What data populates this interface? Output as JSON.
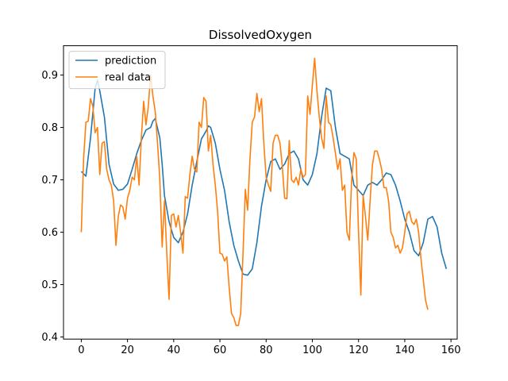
{
  "chart_data": {
    "type": "line",
    "title": "DissolvedOxygen",
    "xlabel": "",
    "ylabel": "",
    "xlim": [
      -7.7,
      162.7
    ],
    "ylim": [
      0.396,
      0.956
    ],
    "xticks": [
      0,
      20,
      40,
      60,
      80,
      100,
      120,
      140,
      160
    ],
    "yticks": [
      0.4,
      0.5,
      0.6,
      0.7,
      0.8,
      0.9
    ],
    "xtick_labels": [
      "0",
      "20",
      "40",
      "60",
      "80",
      "100",
      "120",
      "140",
      "160"
    ],
    "ytick_labels": [
      "0.4",
      "0.5",
      "0.6",
      "0.7",
      "0.8",
      "0.9"
    ],
    "grid": false,
    "legend_position": "upper-left",
    "series": [
      {
        "name": "prediction",
        "color": "#1f77b4",
        "points": [
          [
            0,
            0.716
          ],
          [
            2,
            0.707
          ],
          [
            4,
            0.78
          ],
          [
            6,
            0.875
          ],
          [
            7,
            0.89
          ],
          [
            8,
            0.87
          ],
          [
            10,
            0.82
          ],
          [
            12,
            0.73
          ],
          [
            14,
            0.692
          ],
          [
            16,
            0.68
          ],
          [
            18,
            0.682
          ],
          [
            20,
            0.692
          ],
          [
            22,
            0.72
          ],
          [
            24,
            0.75
          ],
          [
            26,
            0.775
          ],
          [
            28,
            0.795
          ],
          [
            30,
            0.8
          ],
          [
            31,
            0.812
          ],
          [
            32,
            0.817
          ],
          [
            34,
            0.78
          ],
          [
            35,
            0.73
          ],
          [
            36,
            0.67
          ],
          [
            38,
            0.62
          ],
          [
            40,
            0.59
          ],
          [
            42,
            0.58
          ],
          [
            44,
            0.6
          ],
          [
            46,
            0.635
          ],
          [
            48,
            0.69
          ],
          [
            50,
            0.735
          ],
          [
            52,
            0.778
          ],
          [
            54,
            0.793
          ],
          [
            55,
            0.803
          ],
          [
            56,
            0.8
          ],
          [
            58,
            0.77
          ],
          [
            60,
            0.72
          ],
          [
            62,
            0.68
          ],
          [
            64,
            0.62
          ],
          [
            66,
            0.575
          ],
          [
            68,
            0.545
          ],
          [
            70,
            0.52
          ],
          [
            72,
            0.518
          ],
          [
            74,
            0.53
          ],
          [
            76,
            0.58
          ],
          [
            78,
            0.65
          ],
          [
            80,
            0.7
          ],
          [
            82,
            0.735
          ],
          [
            84,
            0.74
          ],
          [
            86,
            0.72
          ],
          [
            88,
            0.73
          ],
          [
            90,
            0.75
          ],
          [
            92,
            0.755
          ],
          [
            94,
            0.74
          ],
          [
            96,
            0.7
          ],
          [
            98,
            0.69
          ],
          [
            100,
            0.71
          ],
          [
            102,
            0.75
          ],
          [
            104,
            0.82
          ],
          [
            106,
            0.875
          ],
          [
            108,
            0.87
          ],
          [
            110,
            0.8
          ],
          [
            112,
            0.75
          ],
          [
            114,
            0.745
          ],
          [
            116,
            0.74
          ],
          [
            118,
            0.69
          ],
          [
            120,
            0.68
          ],
          [
            122,
            0.67
          ],
          [
            124,
            0.69
          ],
          [
            126,
            0.695
          ],
          [
            128,
            0.69
          ],
          [
            130,
            0.7
          ],
          [
            132,
            0.713
          ],
          [
            134,
            0.71
          ],
          [
            136,
            0.69
          ],
          [
            138,
            0.66
          ],
          [
            140,
            0.625
          ],
          [
            142,
            0.6
          ],
          [
            144,
            0.565
          ],
          [
            146,
            0.555
          ],
          [
            148,
            0.58
          ],
          [
            150,
            0.625
          ],
          [
            152,
            0.63
          ],
          [
            154,
            0.61
          ],
          [
            156,
            0.56
          ],
          [
            158,
            0.53
          ]
        ]
      },
      {
        "name": "real data",
        "color": "#ff7f0e",
        "points": [
          [
            0,
            0.6
          ],
          [
            1,
            0.74
          ],
          [
            2,
            0.81
          ],
          [
            3,
            0.812
          ],
          [
            4,
            0.855
          ],
          [
            5,
            0.84
          ],
          [
            6,
            0.79
          ],
          [
            7,
            0.8
          ],
          [
            8,
            0.71
          ],
          [
            9,
            0.77
          ],
          [
            10,
            0.773
          ],
          [
            11,
            0.72
          ],
          [
            12,
            0.7
          ],
          [
            13,
            0.69
          ],
          [
            14,
            0.66
          ],
          [
            15,
            0.575
          ],
          [
            16,
            0.63
          ],
          [
            17,
            0.652
          ],
          [
            18,
            0.648
          ],
          [
            19,
            0.625
          ],
          [
            20,
            0.665
          ],
          [
            21,
            0.68
          ],
          [
            22,
            0.705
          ],
          [
            23,
            0.7
          ],
          [
            24,
            0.745
          ],
          [
            25,
            0.69
          ],
          [
            26,
            0.78
          ],
          [
            27,
            0.85
          ],
          [
            28,
            0.805
          ],
          [
            29,
            0.84
          ],
          [
            30,
            0.9
          ],
          [
            31,
            0.86
          ],
          [
            32,
            0.83
          ],
          [
            33,
            0.77
          ],
          [
            34,
            0.7
          ],
          [
            35,
            0.572
          ],
          [
            36,
            0.66
          ],
          [
            37,
            0.56
          ],
          [
            38,
            0.472
          ],
          [
            39,
            0.632
          ],
          [
            40,
            0.635
          ],
          [
            41,
            0.61
          ],
          [
            42,
            0.632
          ],
          [
            43,
            0.6
          ],
          [
            44,
            0.56
          ],
          [
            45,
            0.668
          ],
          [
            46,
            0.665
          ],
          [
            47,
            0.71
          ],
          [
            48,
            0.745
          ],
          [
            49,
            0.72
          ],
          [
            50,
            0.715
          ],
          [
            51,
            0.81
          ],
          [
            52,
            0.8
          ],
          [
            53,
            0.857
          ],
          [
            54,
            0.85
          ],
          [
            55,
            0.755
          ],
          [
            56,
            0.785
          ],
          [
            57,
            0.73
          ],
          [
            58,
            0.69
          ],
          [
            59,
            0.64
          ],
          [
            60,
            0.56
          ],
          [
            61,
            0.558
          ],
          [
            62,
            0.545
          ],
          [
            63,
            0.553
          ],
          [
            64,
            0.495
          ],
          [
            65,
            0.445
          ],
          [
            66,
            0.437
          ],
          [
            67,
            0.422
          ],
          [
            68,
            0.422
          ],
          [
            69,
            0.445
          ],
          [
            70,
            0.56
          ],
          [
            71,
            0.682
          ],
          [
            72,
            0.642
          ],
          [
            73,
            0.74
          ],
          [
            74,
            0.81
          ],
          [
            75,
            0.82
          ],
          [
            76,
            0.865
          ],
          [
            77,
            0.83
          ],
          [
            78,
            0.855
          ],
          [
            79,
            0.77
          ],
          [
            80,
            0.705
          ],
          [
            81,
            0.69
          ],
          [
            82,
            0.678
          ],
          [
            83,
            0.77
          ],
          [
            84,
            0.785
          ],
          [
            85,
            0.785
          ],
          [
            86,
            0.77
          ],
          [
            87,
            0.725
          ],
          [
            88,
            0.665
          ],
          [
            89,
            0.664
          ],
          [
            90,
            0.775
          ],
          [
            91,
            0.7
          ],
          [
            92,
            0.695
          ],
          [
            93,
            0.705
          ],
          [
            94,
            0.69
          ],
          [
            95,
            0.72
          ],
          [
            96,
            0.705
          ],
          [
            97,
            0.71
          ],
          [
            98,
            0.86
          ],
          [
            99,
            0.825
          ],
          [
            100,
            0.88
          ],
          [
            101,
            0.932
          ],
          [
            102,
            0.87
          ],
          [
            103,
            0.82
          ],
          [
            104,
            0.78
          ],
          [
            105,
            0.76
          ],
          [
            106,
            0.86
          ],
          [
            107,
            0.81
          ],
          [
            108,
            0.805
          ],
          [
            109,
            0.78
          ],
          [
            110,
            0.75
          ],
          [
            111,
            0.72
          ],
          [
            112,
            0.74
          ],
          [
            113,
            0.68
          ],
          [
            114,
            0.69
          ],
          [
            115,
            0.6
          ],
          [
            116,
            0.585
          ],
          [
            117,
            0.7
          ],
          [
            118,
            0.752
          ],
          [
            119,
            0.74
          ],
          [
            120,
            0.6
          ],
          [
            121,
            0.48
          ],
          [
            122,
            0.67
          ],
          [
            123,
            0.63
          ],
          [
            124,
            0.585
          ],
          [
            125,
            0.66
          ],
          [
            126,
            0.728
          ],
          [
            127,
            0.755
          ],
          [
            128,
            0.755
          ],
          [
            129,
            0.74
          ],
          [
            130,
            0.72
          ],
          [
            131,
            0.685
          ],
          [
            132,
            0.685
          ],
          [
            133,
            0.66
          ],
          [
            134,
            0.6
          ],
          [
            135,
            0.59
          ],
          [
            136,
            0.57
          ],
          [
            137,
            0.575
          ],
          [
            138,
            0.56
          ],
          [
            139,
            0.57
          ],
          [
            140,
            0.6
          ],
          [
            141,
            0.635
          ],
          [
            142,
            0.64
          ],
          [
            143,
            0.62
          ],
          [
            144,
            0.615
          ],
          [
            145,
            0.625
          ],
          [
            146,
            0.6
          ],
          [
            147,
            0.55
          ],
          [
            148,
            0.51
          ],
          [
            149,
            0.47
          ],
          [
            150,
            0.452
          ]
        ]
      }
    ]
  }
}
